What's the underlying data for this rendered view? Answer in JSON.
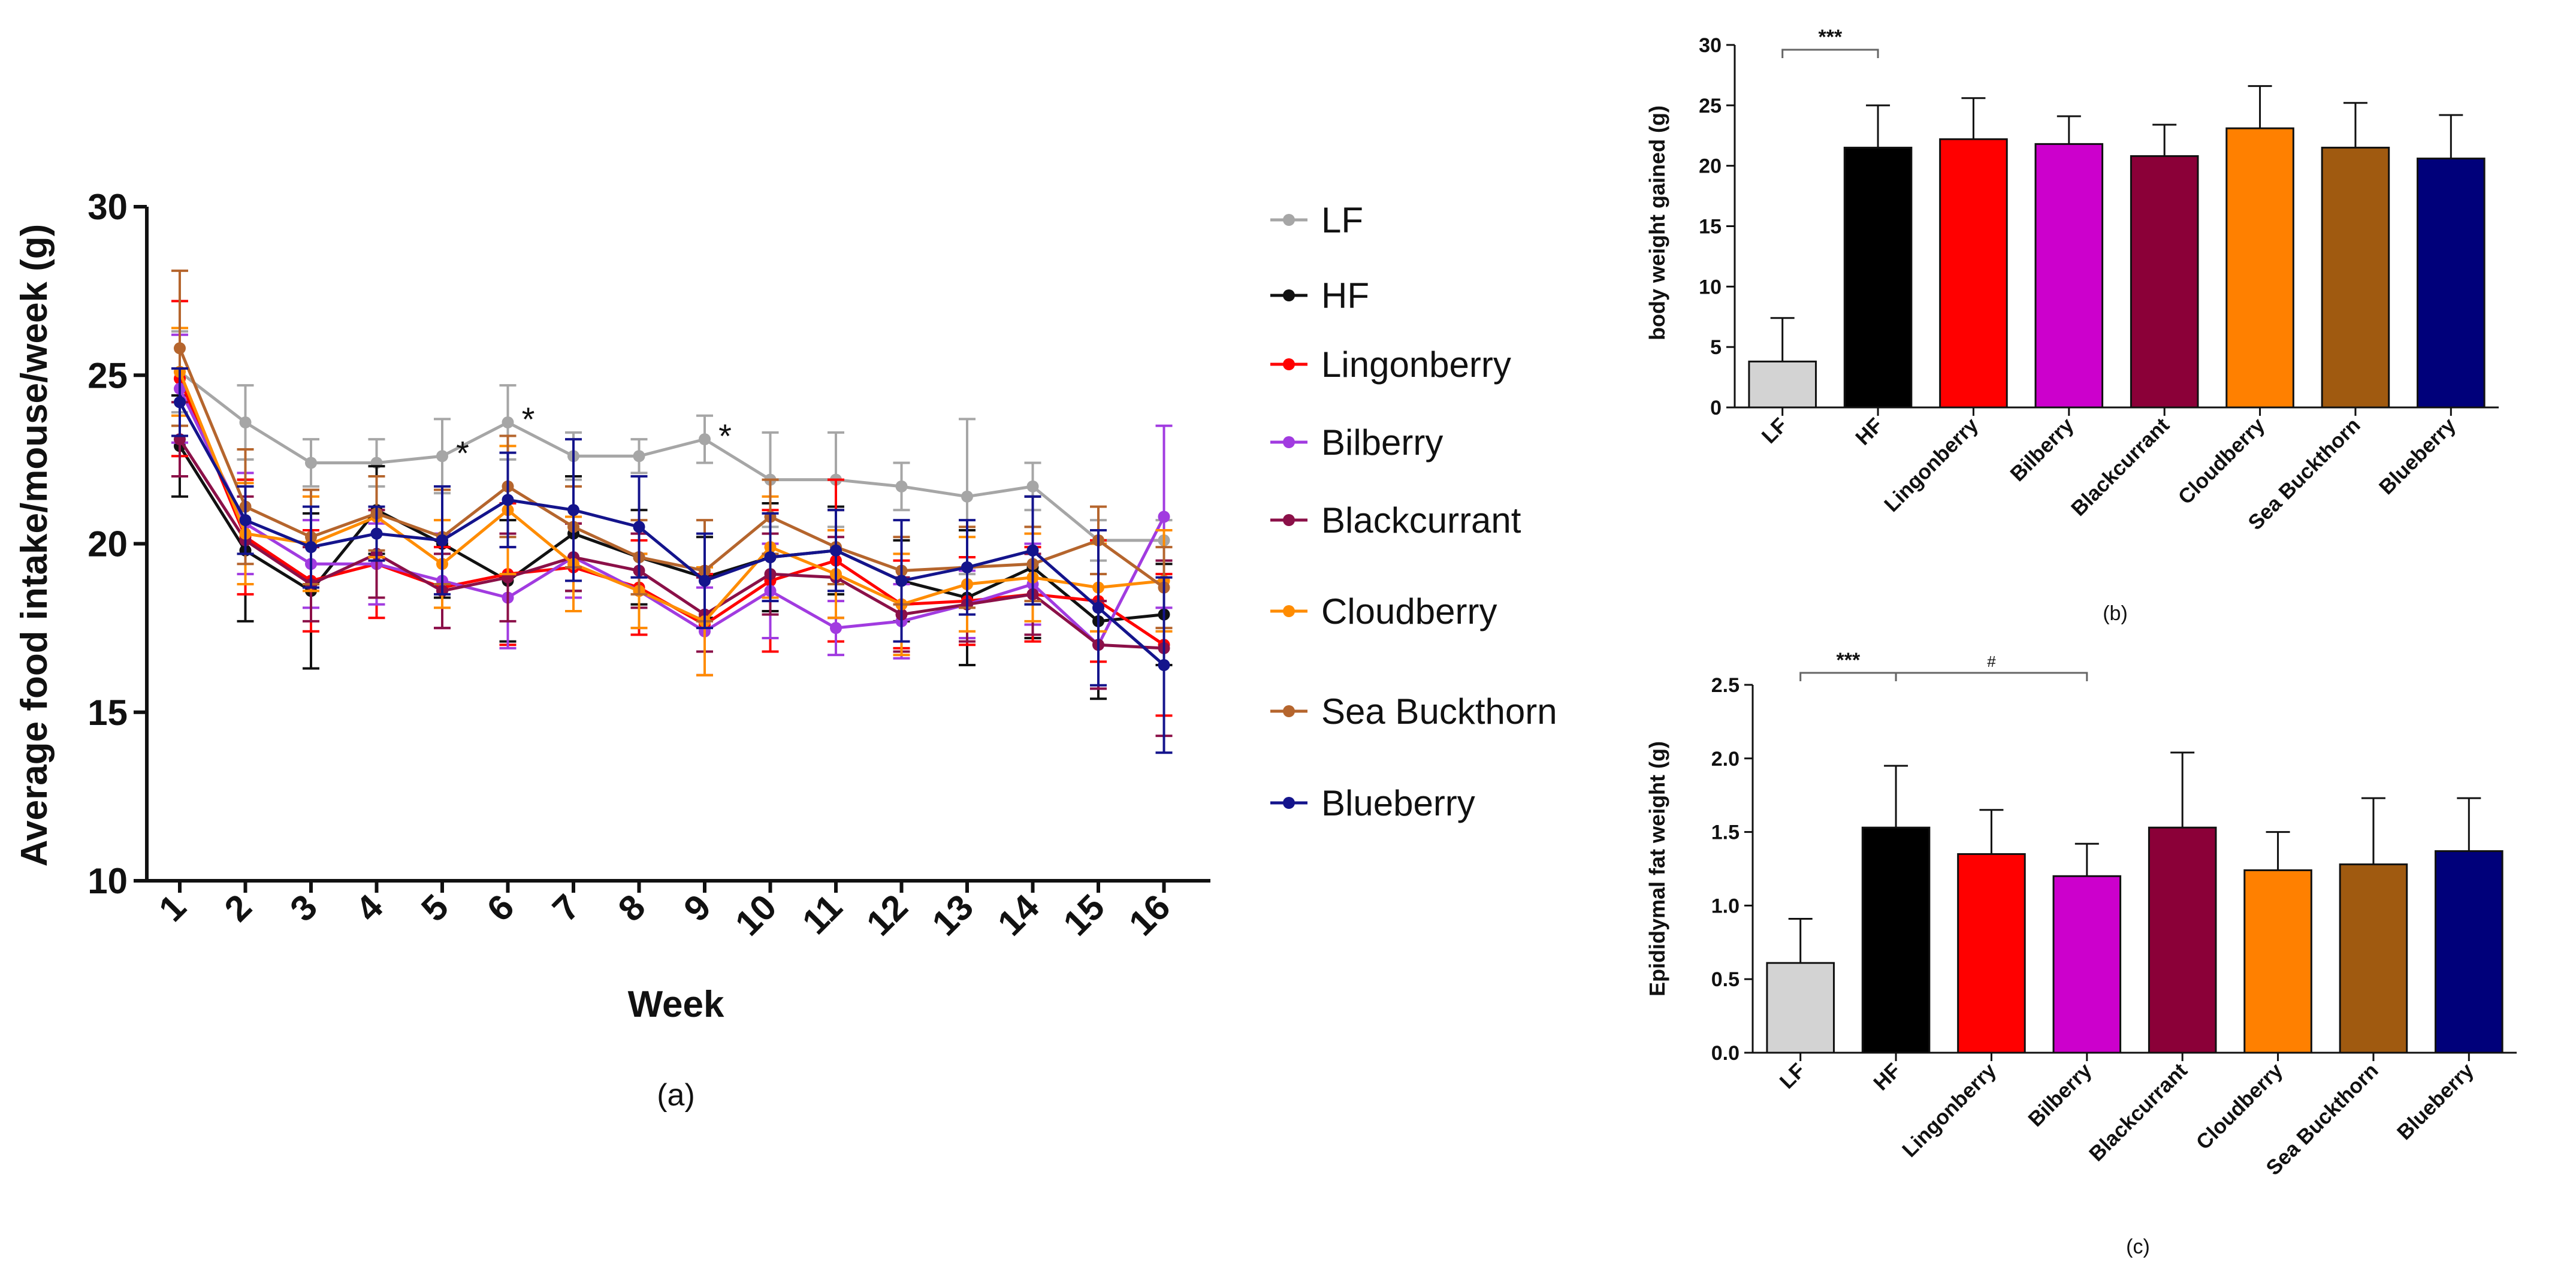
{
  "figure": {
    "panel_a_caption": "(a)",
    "panel_b_caption": "(b)",
    "panel_c_caption": "(c)"
  },
  "chart_data": [
    {
      "id": "a",
      "type": "line",
      "xlabel": "Week",
      "ylabel": "Average food intake/mouse/week (g)",
      "ylim": [
        10,
        30
      ],
      "yticks": [
        10,
        15,
        20,
        25,
        30
      ],
      "x": [
        1,
        2,
        3,
        4,
        5,
        6,
        7,
        8,
        9,
        10,
        11,
        12,
        13,
        14,
        15,
        16
      ],
      "legend_position": "right",
      "annotations": [
        {
          "x": 5,
          "text": "*"
        },
        {
          "x": 6,
          "text": "*"
        },
        {
          "x": 9,
          "text": "*"
        }
      ],
      "series": [
        {
          "name": "LF",
          "color": "#a6a6a6",
          "values": [
            25.1,
            23.6,
            22.4,
            22.4,
            22.6,
            23.6,
            22.6,
            22.6,
            23.1,
            21.9,
            21.9,
            21.7,
            21.4,
            21.7,
            20.1,
            20.1
          ],
          "errors": [
            1.2,
            1.1,
            0.7,
            0.7,
            1.1,
            1.1,
            0.7,
            0.5,
            0.7,
            1.4,
            1.4,
            0.7,
            2.3,
            0.7,
            0.6,
            0.6
          ]
        },
        {
          "name": "HF",
          "color": "#111111",
          "values": [
            22.9,
            19.8,
            18.6,
            21.0,
            20.0,
            18.9,
            20.3,
            19.6,
            19.0,
            19.6,
            19.8,
            18.9,
            18.4,
            19.3,
            17.7,
            17.9
          ],
          "errors": [
            1.5,
            2.1,
            2.3,
            1.3,
            1.6,
            1.8,
            1.7,
            1.4,
            1.2,
            1.6,
            1.3,
            1.2,
            2.0,
            2.1,
            2.3,
            1.5
          ]
        },
        {
          "name": "Lingonberry",
          "color": "#ff0000",
          "values": [
            24.9,
            20.2,
            18.9,
            19.4,
            18.7,
            19.1,
            19.3,
            18.7,
            17.6,
            18.9,
            19.5,
            18.2,
            18.3,
            18.5,
            18.3,
            17.0
          ],
          "errors": [
            2.3,
            1.7,
            1.5,
            1.6,
            1.2,
            2.1,
            1.3,
            1.4,
            1.5,
            2.1,
            2.4,
            1.3,
            1.3,
            1.4,
            1.8,
            2.1
          ]
        },
        {
          "name": "Bilberry",
          "color": "#a13be0",
          "values": [
            24.6,
            20.6,
            19.4,
            19.4,
            18.9,
            18.4,
            19.6,
            18.6,
            17.4,
            18.6,
            17.5,
            17.7,
            18.2,
            18.8,
            17.0,
            20.8
          ],
          "errors": [
            1.6,
            1.5,
            1.3,
            1.2,
            1.4,
            1.5,
            1.2,
            1.1,
            1.3,
            1.4,
            0.8,
            1.1,
            1.0,
            1.2,
            1.3,
            2.7
          ]
        },
        {
          "name": "Blackcurrant",
          "color": "#8b1048",
          "values": [
            23.1,
            20.1,
            18.8,
            19.7,
            18.6,
            19.0,
            19.6,
            19.2,
            17.9,
            19.1,
            19.0,
            17.9,
            18.2,
            18.5,
            17.0,
            16.9
          ],
          "errors": [
            1.1,
            1.3,
            1.1,
            1.3,
            1.1,
            1.3,
            1.0,
            1.1,
            1.1,
            1.2,
            1.2,
            1.1,
            1.1,
            1.2,
            1.3,
            2.6
          ]
        },
        {
          "name": "Cloudberry",
          "color": "#ff8c00",
          "values": [
            25.1,
            20.3,
            20.0,
            20.8,
            19.4,
            21.0,
            19.4,
            18.6,
            17.7,
            19.9,
            19.1,
            18.2,
            18.8,
            19.0,
            18.7,
            18.9
          ],
          "errors": [
            1.3,
            1.5,
            1.4,
            1.2,
            1.3,
            1.9,
            1.4,
            1.1,
            1.6,
            1.5,
            1.3,
            1.5,
            1.4,
            1.3,
            1.3,
            1.5
          ]
        },
        {
          "name": "Sea Buckthorn",
          "color": "#b5652d",
          "values": [
            25.8,
            21.1,
            20.2,
            20.9,
            20.2,
            21.7,
            20.5,
            19.6,
            19.2,
            20.8,
            19.9,
            19.2,
            19.3,
            19.4,
            20.1,
            18.7
          ],
          "errors": [
            2.3,
            1.7,
            1.4,
            1.1,
            1.4,
            1.5,
            1.2,
            1.1,
            1.5,
            1.1,
            1.1,
            1.0,
            1.2,
            1.1,
            1.0,
            1.2
          ]
        },
        {
          "name": "Blueberry",
          "color": "#14148c",
          "values": [
            24.2,
            20.7,
            19.9,
            20.3,
            20.1,
            21.3,
            21.0,
            20.5,
            18.9,
            19.6,
            19.8,
            18.9,
            19.3,
            19.8,
            18.1,
            16.4
          ],
          "errors": [
            1.0,
            1.0,
            1.2,
            0.8,
            1.6,
            1.4,
            2.1,
            1.5,
            1.4,
            1.3,
            1.2,
            1.8,
            1.4,
            1.6,
            2.3,
            2.6
          ]
        }
      ]
    },
    {
      "id": "b",
      "type": "bar",
      "ylabel": "body weight gained (g)",
      "ylim": [
        0,
        30
      ],
      "yticks": [
        0,
        5,
        10,
        15,
        20,
        25,
        30
      ],
      "categories": [
        "LF",
        "HF",
        "Lingonberry",
        "Bilberry",
        "Blackcurrant",
        "Cloudberry",
        "Sea Buckthorn",
        "Blueberry"
      ],
      "values": [
        3.8,
        21.5,
        22.2,
        21.8,
        20.8,
        23.1,
        21.5,
        20.6
      ],
      "errors": [
        3.6,
        3.5,
        3.4,
        2.3,
        2.6,
        3.5,
        3.7,
        3.6
      ],
      "colors": [
        "#d3d3d3",
        "#000000",
        "#ff0000",
        "#cc00cc",
        "#8b0038",
        "#ff8000",
        "#a05a10",
        "#00007a"
      ],
      "significance": [
        {
          "from": "LF",
          "to": "HF",
          "label": "***"
        }
      ]
    },
    {
      "id": "c",
      "type": "bar",
      "ylabel": "Epididymal fat weight (g)",
      "ylim": [
        0,
        2.5
      ],
      "yticks": [
        "0.0",
        "0.5",
        "1.0",
        "1.5",
        "2.0",
        "2.5"
      ],
      "categories": [
        "LF",
        "HF",
        "Lingonberry",
        "Bilberry",
        "Blackcurrant",
        "Cloudberry",
        "Sea Buckthorn",
        "Blueberry"
      ],
      "values": [
        0.61,
        1.53,
        1.35,
        1.2,
        1.53,
        1.24,
        1.28,
        1.37
      ],
      "errors": [
        0.3,
        0.42,
        0.3,
        0.22,
        0.51,
        0.26,
        0.45,
        0.36
      ],
      "colors": [
        "#d3d3d3",
        "#000000",
        "#ff0000",
        "#cc00cc",
        "#8b0038",
        "#ff8000",
        "#a05a10",
        "#00007a"
      ],
      "significance": [
        {
          "from": "LF",
          "to": "HF",
          "label": "***"
        },
        {
          "from": "HF",
          "to": "Bilberry",
          "label": "#"
        }
      ]
    }
  ]
}
